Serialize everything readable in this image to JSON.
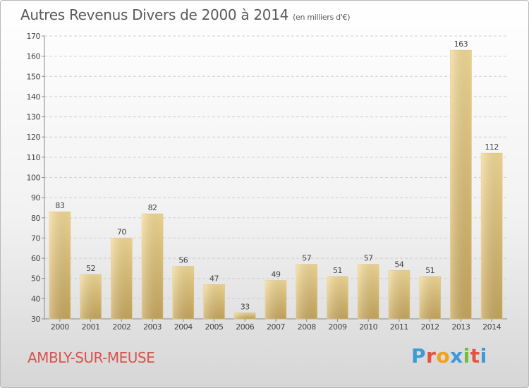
{
  "header": {
    "title": "Autres Revenus Divers de 2000 à 2014",
    "subtitle": "(en milliers d'€)"
  },
  "footer": {
    "place": "AMBLY-SUR-MEUSE",
    "logo_text": "Proxiti",
    "logo_colors": [
      "#3d9ad6",
      "#e5533d",
      "#f0a21a",
      "#3d9ad6",
      "#6dbf3e",
      "#e5533d",
      "#3d9ad6"
    ]
  },
  "chart_data": {
    "type": "bar",
    "title": "Autres Revenus Divers de 2000 à 2014",
    "xlabel": "",
    "ylabel": "",
    "categories": [
      "2000",
      "2001",
      "2002",
      "2003",
      "2004",
      "2005",
      "2006",
      "2007",
      "2008",
      "2009",
      "2010",
      "2011",
      "2012",
      "2013",
      "2014"
    ],
    "values": [
      83,
      52,
      70,
      82,
      56,
      47,
      33,
      49,
      57,
      51,
      57,
      54,
      51,
      163,
      112
    ],
    "ylim": [
      30,
      170
    ],
    "yticks": [
      30,
      40,
      50,
      60,
      70,
      80,
      90,
      100,
      110,
      120,
      130,
      140,
      150,
      160,
      170
    ],
    "grid": true,
    "bar_color_top": "#f5dc98",
    "bar_color_bottom": "#c9a95e"
  }
}
